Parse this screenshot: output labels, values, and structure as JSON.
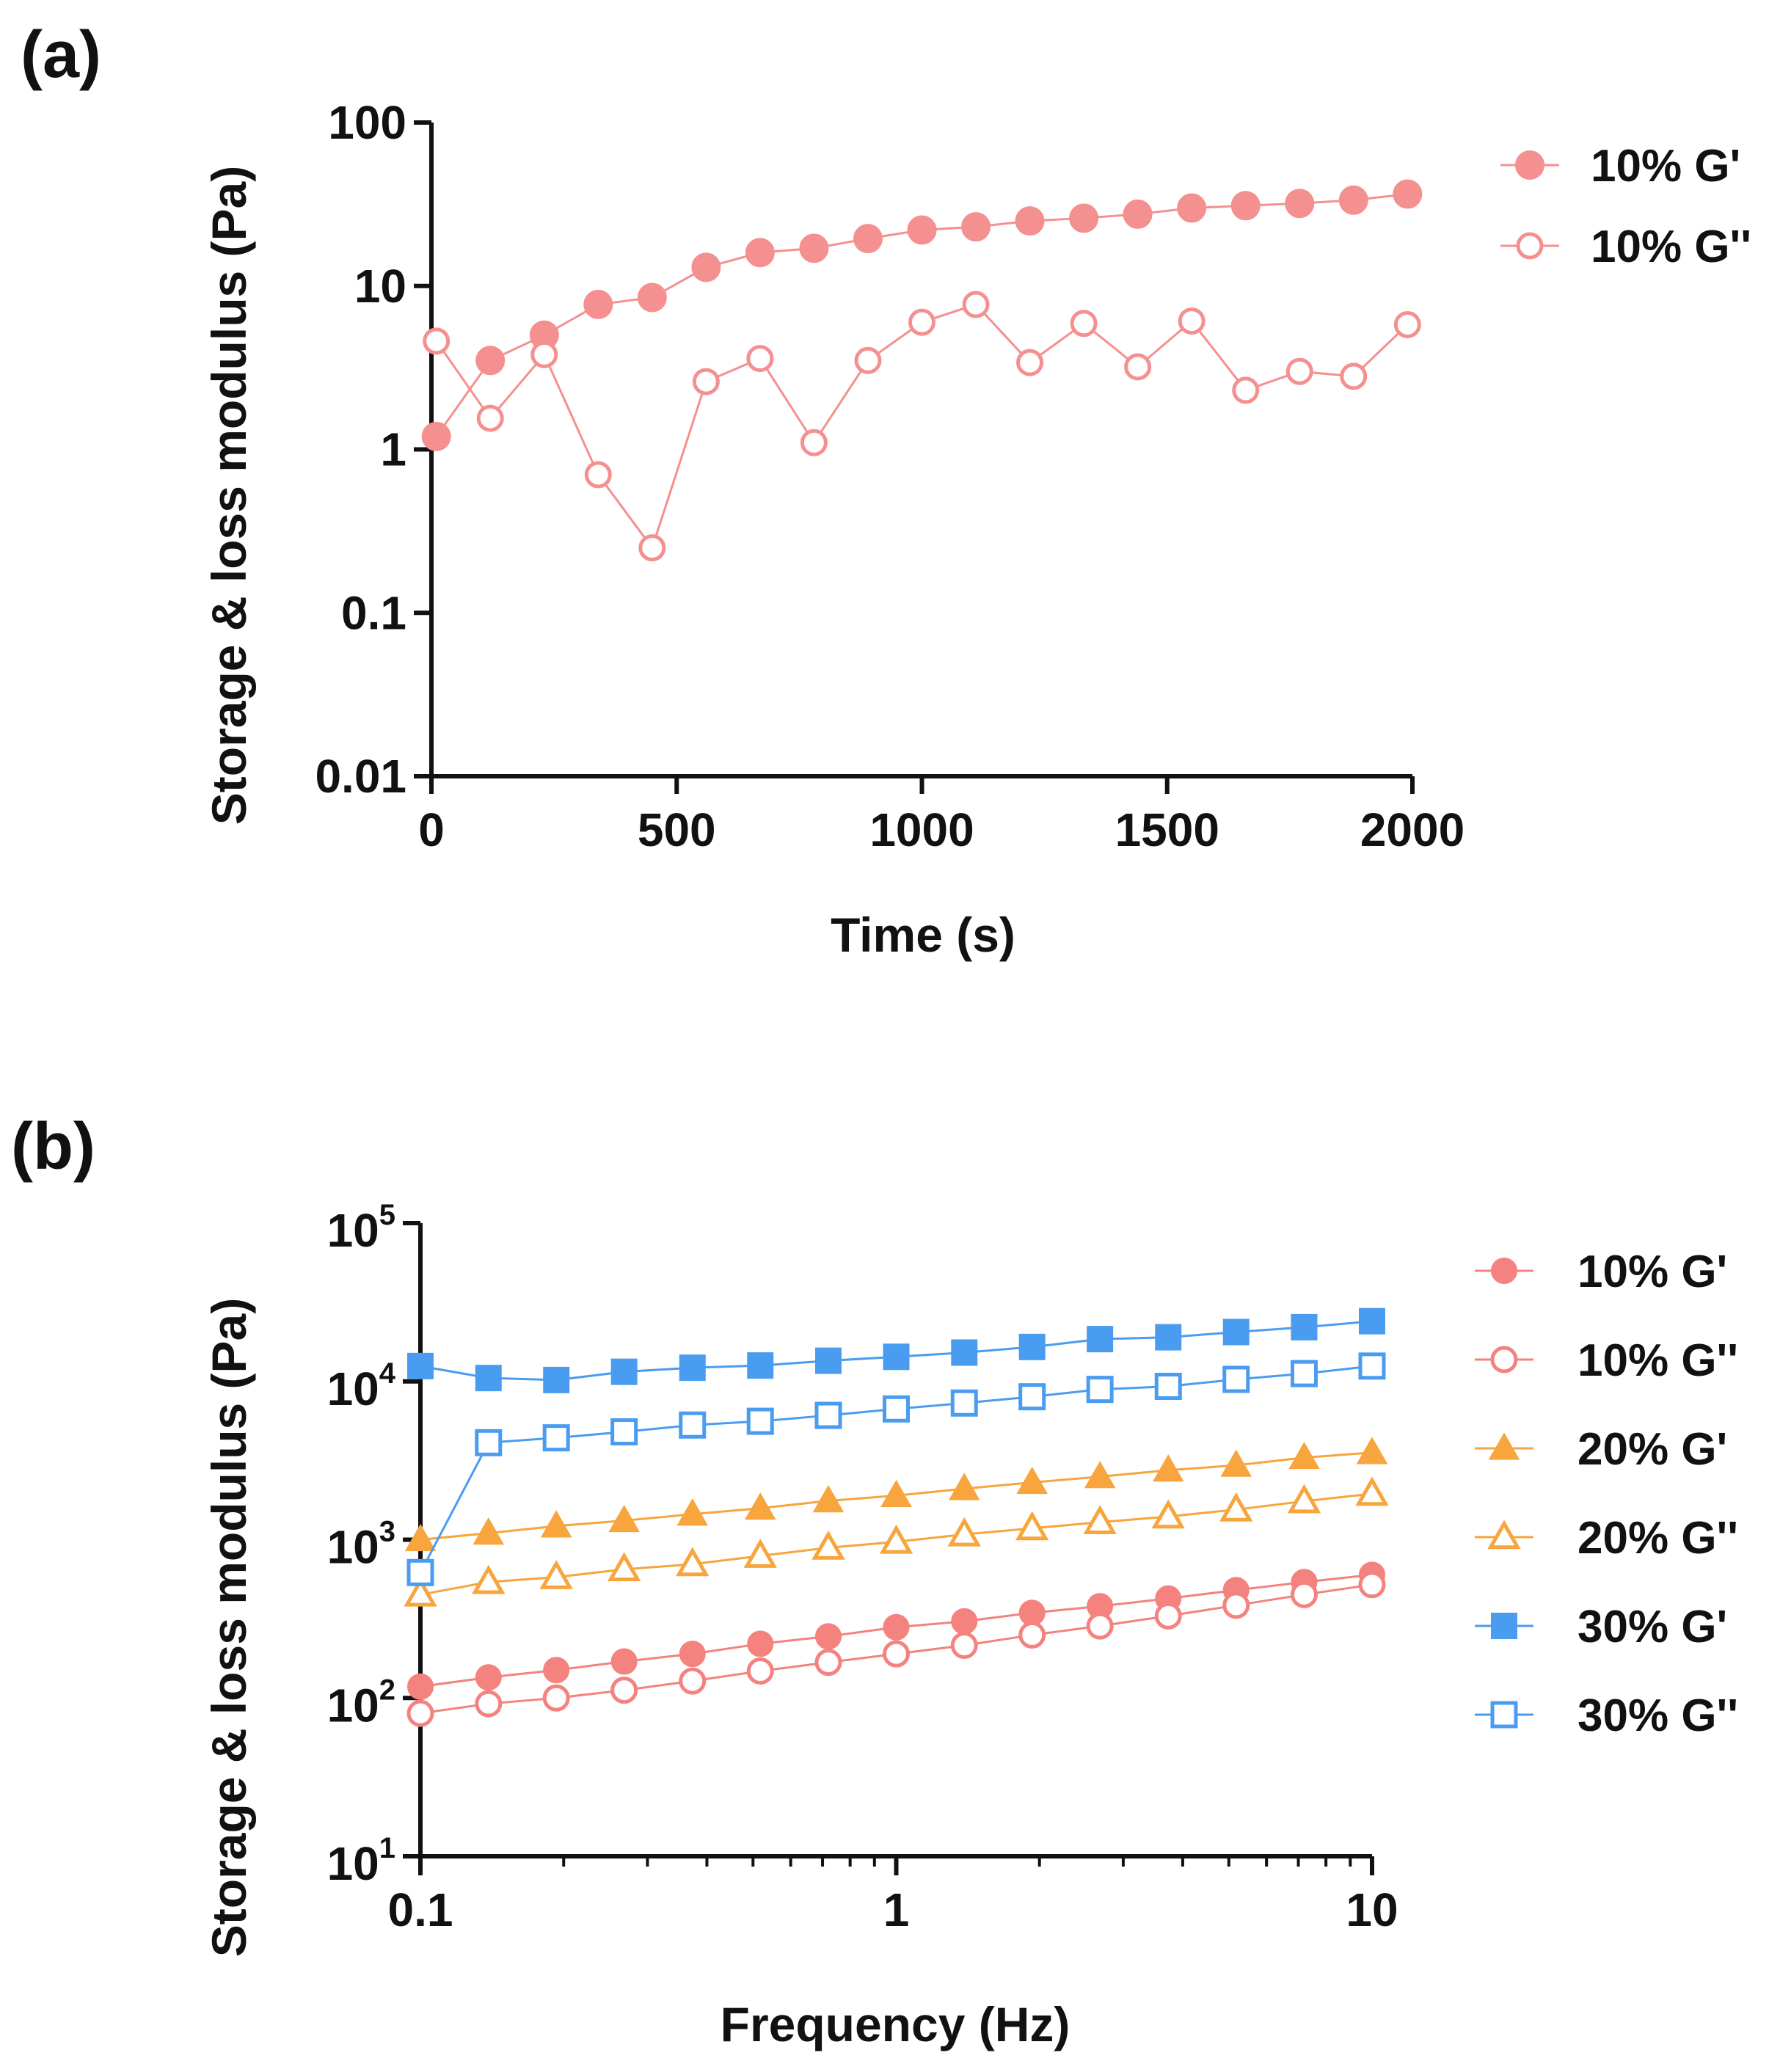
{
  "panels": [
    {
      "label": "(a)",
      "chart_data": {
        "type": "scatter",
        "xlabel": "Time (s)",
        "ylabel": "Storage & loss modulus (Pa)",
        "xscale": "linear",
        "yscale": "log",
        "xlim": [
          0,
          2000
        ],
        "ylim": [
          0.01,
          100
        ],
        "xticks": [
          0,
          500,
          1000,
          1500,
          2000
        ],
        "xtick_labels": [
          "0",
          "500",
          "1000",
          "1500",
          "2000"
        ],
        "yticks": [
          0.01,
          0.1,
          1,
          10,
          100
        ],
        "ytick_labels": [
          "0.01",
          "0.1",
          "1",
          "10",
          "100"
        ],
        "grid": false,
        "legend_position": "top-right outside",
        "series": [
          {
            "name": "10% G'",
            "color": "#f4908f",
            "marker": "circle",
            "filled": true,
            "points": [
              [
                10,
                1.2
              ],
              [
                120,
                3.5
              ],
              [
                230,
                5.0
              ],
              [
                340,
                7.7
              ],
              [
                450,
                8.5
              ],
              [
                560,
                13.0
              ],
              [
                670,
                16.0
              ],
              [
                780,
                17.0
              ],
              [
                890,
                19.5
              ],
              [
                1000,
                22.0
              ],
              [
                1110,
                23.0
              ],
              [
                1220,
                25.0
              ],
              [
                1330,
                26.0
              ],
              [
                1440,
                27.5
              ],
              [
                1550,
                30.0
              ],
              [
                1660,
                31.0
              ],
              [
                1770,
                32.0
              ],
              [
                1880,
                33.5
              ],
              [
                1990,
                36.5
              ]
            ]
          },
          {
            "name": "10% G''",
            "color": "#f4908f",
            "marker": "circle",
            "filled": false,
            "points": [
              [
                10,
                4.6
              ],
              [
                120,
                1.55
              ],
              [
                230,
                3.8
              ],
              [
                340,
                0.7
              ],
              [
                450,
                0.25
              ],
              [
                560,
                2.6
              ],
              [
                670,
                3.6
              ],
              [
                780,
                1.1
              ],
              [
                890,
                3.5
              ],
              [
                1000,
                6.0
              ],
              [
                1110,
                7.7
              ],
              [
                1220,
                3.4
              ],
              [
                1330,
                5.9
              ],
              [
                1440,
                3.2
              ],
              [
                1550,
                6.1
              ],
              [
                1660,
                2.3
              ],
              [
                1770,
                3.0
              ],
              [
                1880,
                2.8
              ],
              [
                1990,
                5.8
              ]
            ]
          }
        ]
      }
    },
    {
      "label": "(b)",
      "chart_data": {
        "type": "line",
        "xlabel": "Frequency (Hz)",
        "ylabel": "Storage & loss modulus (Pa)",
        "xscale": "log",
        "yscale": "log",
        "xlim": [
          0.1,
          10
        ],
        "ylim": [
          10,
          100000
        ],
        "xticks": [
          0.1,
          1,
          10
        ],
        "xtick_labels": [
          "0.1",
          "1",
          "10"
        ],
        "yticks": [
          10,
          100,
          1000,
          10000,
          100000
        ],
        "ytick_labels": [
          {
            "base": "10",
            "exp": "1"
          },
          {
            "base": "10",
            "exp": "2"
          },
          {
            "base": "10",
            "exp": "3"
          },
          {
            "base": "10",
            "exp": "4"
          },
          {
            "base": "10",
            "exp": "5"
          }
        ],
        "grid": false,
        "legend_position": "right outside",
        "x": [
          0.1,
          0.139,
          0.193,
          0.268,
          0.373,
          0.518,
          0.72,
          1.0,
          1.39,
          1.93,
          2.68,
          3.73,
          5.18,
          7.2,
          10.0
        ],
        "series": [
          {
            "name": "10% G'",
            "color": "#f4827e",
            "marker": "circle",
            "filled": true,
            "values": [
              118,
              135,
              150,
              170,
              190,
              220,
              245,
              280,
              305,
              345,
              380,
              425,
              480,
              540,
              600
            ]
          },
          {
            "name": "10% G''",
            "color": "#f4827e",
            "marker": "circle",
            "filled": false,
            "values": [
              80,
              92,
              100,
              112,
              128,
              148,
              168,
              190,
              215,
              250,
              285,
              330,
              385,
              450,
              520
            ]
          },
          {
            "name": "20% G'",
            "color": "#f7a53c",
            "marker": "triangle",
            "filled": true,
            "values": [
              1000,
              1100,
              1220,
              1320,
              1450,
              1580,
              1760,
              1900,
              2100,
              2300,
              2500,
              2750,
              2950,
              3300,
              3550
            ]
          },
          {
            "name": "20% G''",
            "color": "#f7a53c",
            "marker": "triangle",
            "filled": false,
            "values": [
              450,
              540,
              580,
              650,
              700,
              790,
              890,
              970,
              1080,
              1180,
              1290,
              1400,
              1550,
              1750,
              1950
            ]
          },
          {
            "name": "30% G'",
            "color": "#4a9cf0",
            "marker": "square",
            "filled": true,
            "values": [
              12500,
              10500,
              10200,
              11500,
              12200,
              12600,
              13500,
              14300,
              15200,
              16500,
              18500,
              19000,
              20500,
              22000,
              24000
            ]
          },
          {
            "name": "30% G''",
            "color": "#4a9cf0",
            "marker": "square",
            "filled": false,
            "values": [
              620,
              4100,
              4400,
              4800,
              5300,
              5600,
              6100,
              6700,
              7300,
              8000,
              8900,
              9300,
              10300,
              11200,
              12500
            ]
          }
        ]
      }
    }
  ]
}
